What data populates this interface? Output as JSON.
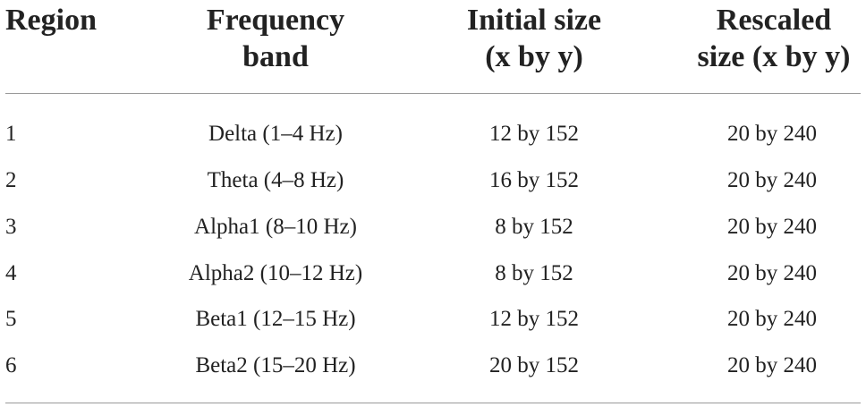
{
  "table": {
    "headers": {
      "region": "Region",
      "band_line1": "Frequency",
      "band_line2": "band",
      "initial_line1": "Initial size",
      "initial_line2": "(x by y)",
      "rescaled_line1": "Rescaled",
      "rescaled_line2": "size (x by y)"
    },
    "rows": [
      {
        "region": "1",
        "band": "Delta (1–4 Hz)",
        "initial": "12 by 152",
        "rescaled": "20 by 240"
      },
      {
        "region": "2",
        "band": "Theta (4–8 Hz)",
        "initial": "16 by 152",
        "rescaled": "20 by 240"
      },
      {
        "region": "3",
        "band": "Alpha1 (8–10 Hz)",
        "initial": "8 by 152",
        "rescaled": "20 by 240"
      },
      {
        "region": "4",
        "band": "Alpha2 (10–12 Hz)",
        "initial": "8 by 152",
        "rescaled": "20 by 240"
      },
      {
        "region": "5",
        "band": "Beta1 (12–15 Hz)",
        "initial": "12 by 152",
        "rescaled": "20 by 240"
      },
      {
        "region": "6",
        "band": "Beta2 (15–20 Hz)",
        "initial": "20 by 152",
        "rescaled": "20 by 240"
      }
    ]
  }
}
